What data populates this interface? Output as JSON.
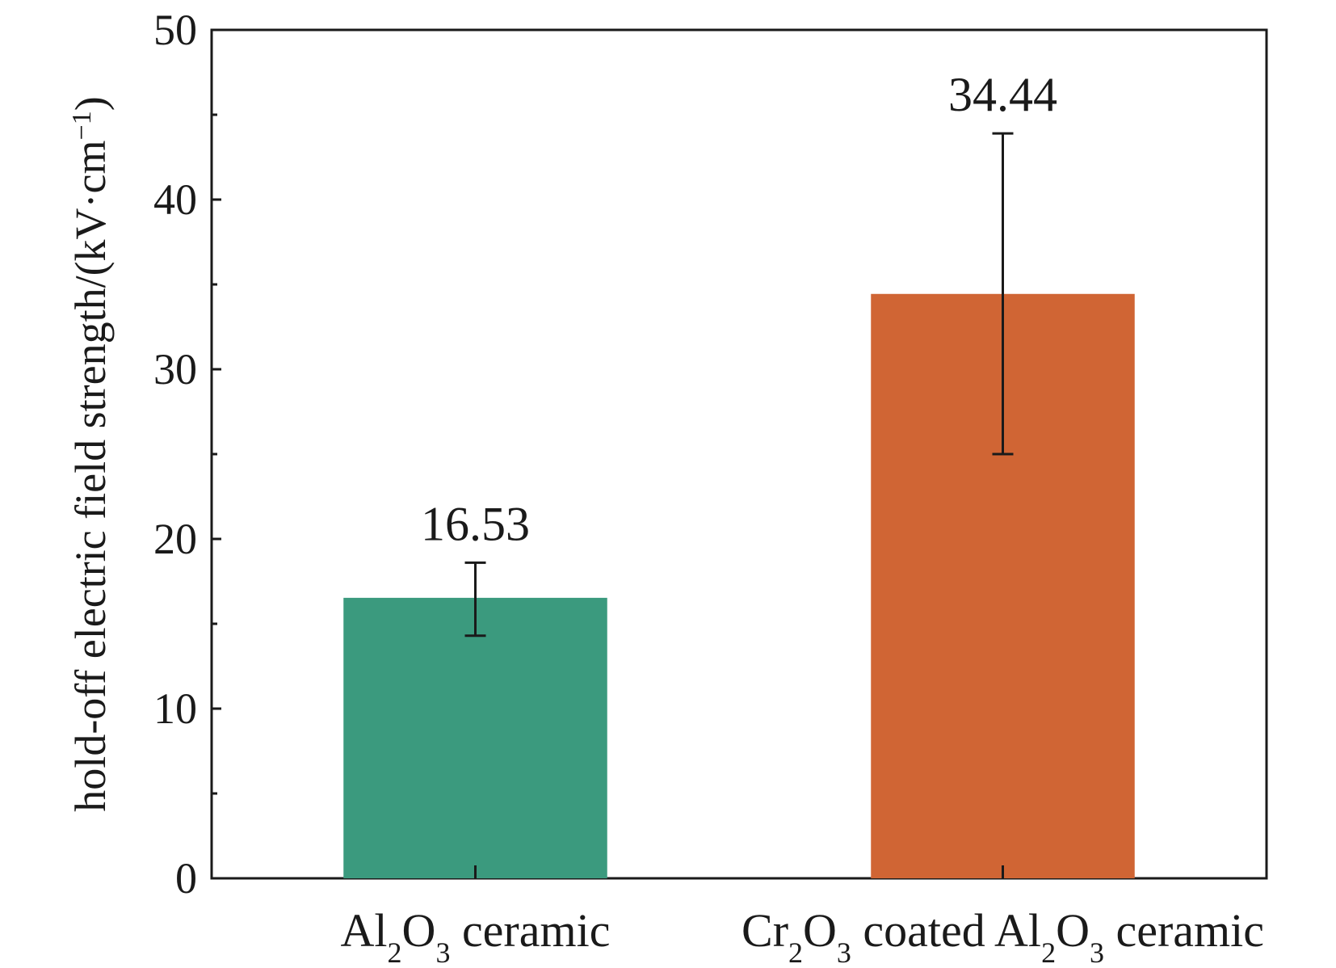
{
  "chart_data": {
    "type": "bar",
    "categories": [
      {
        "base": "Al",
        "s1": "2",
        "mid": "O",
        "s2": "3",
        "rest": " ceramic"
      },
      {
        "base": "Cr",
        "s1": "2",
        "mid": "O",
        "s2": "3",
        "rest": " coated Al",
        "s3": "2",
        "mid2": "O",
        "s4": "3",
        "rest2": " ceramic"
      }
    ],
    "values": [
      16.53,
      34.44
    ],
    "value_labels": [
      "16.53",
      "34.44"
    ],
    "error_bars": [
      {
        "low": 14.3,
        "high": 18.6
      },
      {
        "low": 25.0,
        "high": 43.9
      }
    ],
    "colors": [
      "#3b9a7e",
      "#d06534"
    ],
    "ylabel": {
      "main": "hold-off electric field strength/(kV·cm",
      "sup": "−1",
      "tail": ")"
    },
    "ylim": [
      0,
      50
    ],
    "yticks": [
      0,
      10,
      20,
      30,
      40,
      50
    ],
    "grid": false
  }
}
